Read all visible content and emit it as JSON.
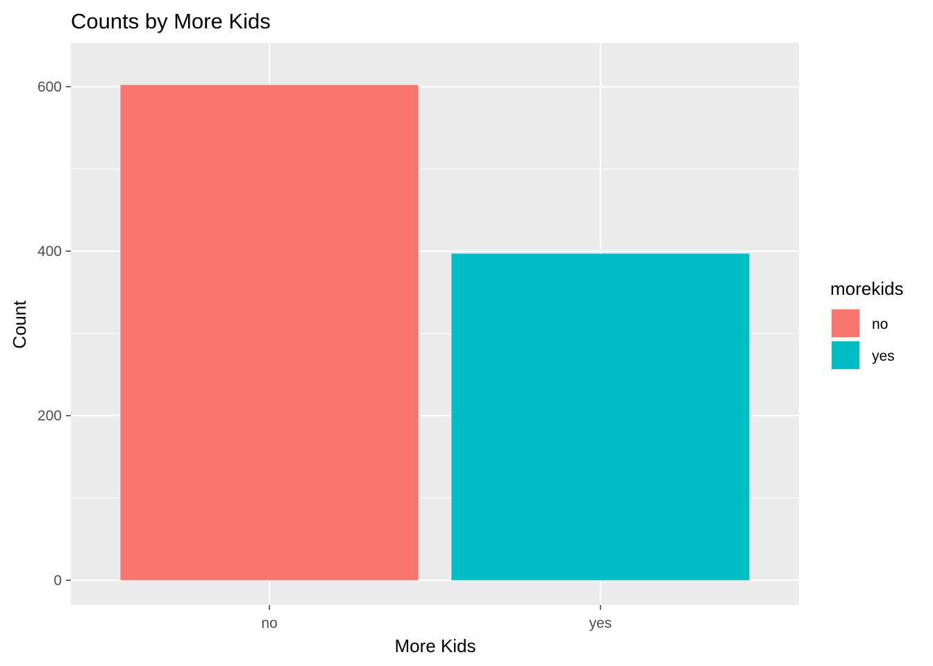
{
  "chart_data": {
    "type": "bar",
    "title": "Counts by More Kids",
    "xlabel": "More Kids",
    "ylabel": "Count",
    "categories": [
      "no",
      "yes"
    ],
    "values": [
      602,
      397
    ],
    "colors": [
      "#F8766D",
      "#00BFC4"
    ],
    "ylim": [
      -30,
      653
    ],
    "yticks": [
      0,
      200,
      400,
      600
    ],
    "ytick_labels": [
      "0",
      "200",
      "400",
      "600"
    ],
    "y_minor_ticks": [
      100,
      300,
      500
    ],
    "grid": true,
    "legend": {
      "title": "morekids",
      "entries": [
        "no",
        "yes"
      ],
      "placement": "right"
    },
    "panel_background": "#EBEBEB",
    "grid_color": "#FFFFFF"
  }
}
